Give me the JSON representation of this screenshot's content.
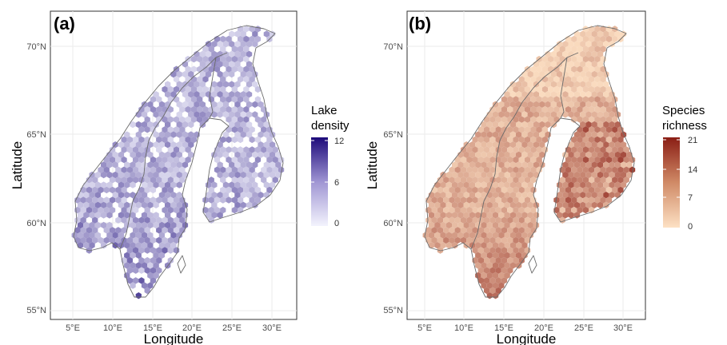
{
  "panels": [
    {
      "id": "a",
      "label": "(a)",
      "x_ticks": [
        "5°E",
        "10°E",
        "15°E",
        "20°E",
        "25°E",
        "30°E"
      ],
      "y_ticks": [
        "55°N",
        "60°N",
        "65°N",
        "70°N"
      ],
      "xlabel": "Longitude",
      "ylabel": "Latitude",
      "legend": {
        "title_lines": [
          "Lake",
          "density"
        ],
        "ticks": [
          "12",
          "6",
          "0"
        ],
        "color_low": "#f3f3fd",
        "color_high": "#1d0a7a",
        "range": [
          0,
          12
        ]
      }
    },
    {
      "id": "b",
      "label": "(b)",
      "x_ticks": [
        "5°E",
        "10°E",
        "15°E",
        "20°E",
        "25°E",
        "30°E"
      ],
      "y_ticks": [
        "55°N",
        "60°N",
        "65°N",
        "70°N"
      ],
      "xlabel": "Longitude",
      "ylabel": "Latitude",
      "legend": {
        "title_lines": [
          "Species",
          "richness"
        ],
        "ticks": [
          "21",
          "14",
          "7",
          "0"
        ],
        "color_low": "#fde1c4",
        "color_high": "#8a1d14",
        "range": [
          0,
          21
        ]
      }
    }
  ]
}
